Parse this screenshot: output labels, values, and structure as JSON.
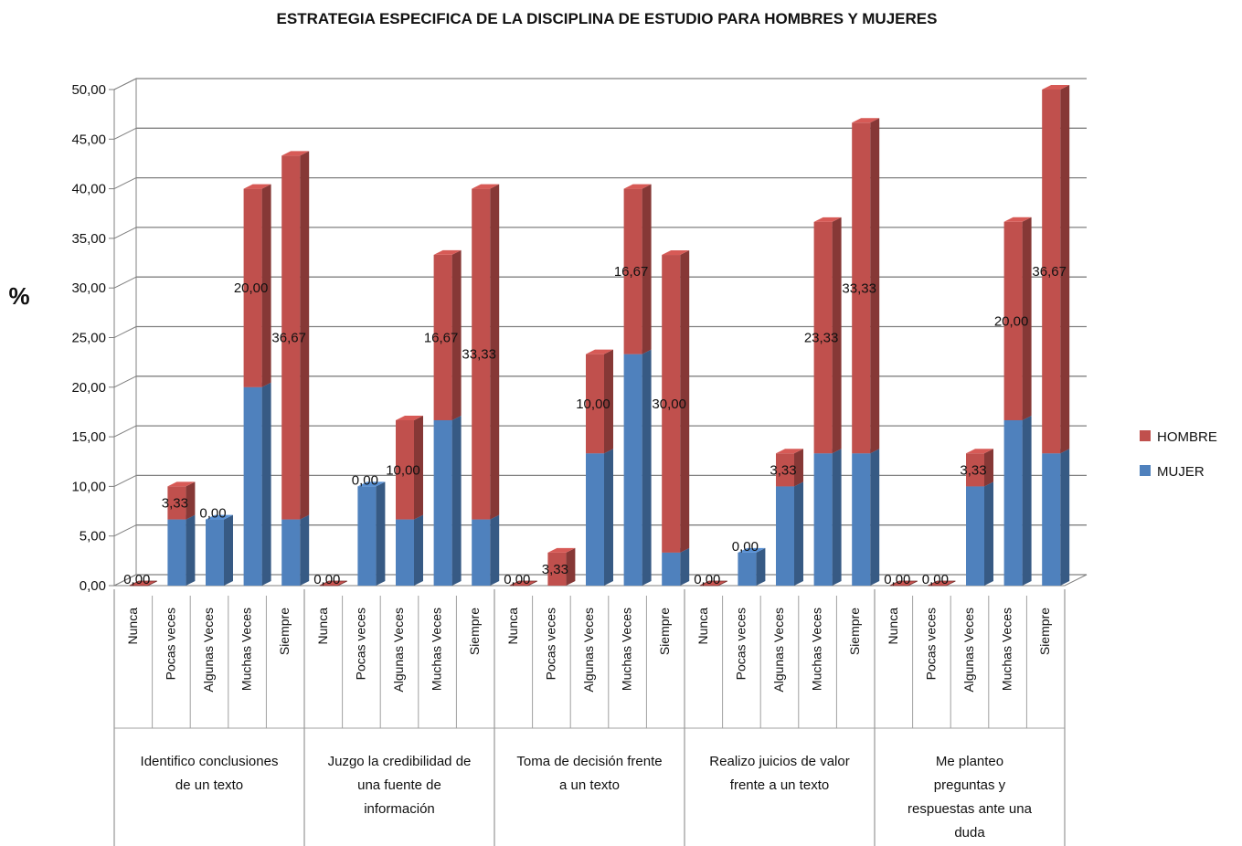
{
  "chart_data": {
    "type": "bar",
    "stacked": true,
    "three_d": true,
    "title": "ESTRATEGIA ESPECIFICA DE LA DISCIPLINA DE ESTUDIO PARA HOMBRES Y MUJERES",
    "ylabel": "%",
    "xlabel": "",
    "ylim": [
      0,
      50
    ],
    "yticks": [
      "0,00",
      "5,00",
      "10,00",
      "15,00",
      "20,00",
      "25,00",
      "30,00",
      "35,00",
      "40,00",
      "45,00",
      "50,00"
    ],
    "grid": true,
    "legend_position": "right",
    "categories": [
      "Nunca",
      "Pocas veces",
      "Algunas Veces",
      "Muchas Veces",
      "Siempre"
    ],
    "groups": [
      {
        "label_lines": [
          "Identifico conclusiones",
          "de un texto"
        ]
      },
      {
        "label_lines": [
          "Juzgo la credibilidad de",
          "una fuente de",
          "información"
        ]
      },
      {
        "label_lines": [
          "Toma de decisión frente",
          "a un texto"
        ]
      },
      {
        "label_lines": [
          "Realizo juicios de valor",
          "frente a un texto"
        ]
      },
      {
        "label_lines": [
          "Me planteo",
          "preguntas y",
          "respuestas ante una",
          "duda"
        ]
      }
    ],
    "series": [
      {
        "name": "MUJER",
        "color": "#4f81bd",
        "values": [
          [
            0,
            6.67,
            6.67,
            20,
            6.67
          ],
          [
            0,
            10,
            6.67,
            16.67,
            6.67
          ],
          [
            0,
            0,
            13.33,
            23.33,
            3.33
          ],
          [
            0,
            3.33,
            10,
            13.33,
            13.33
          ],
          [
            0,
            0,
            10,
            16.67,
            13.33
          ]
        ]
      },
      {
        "name": "HOMBRE",
        "color": "#c0504d",
        "values": [
          [
            0,
            3.33,
            0,
            20,
            36.67
          ],
          [
            0,
            0,
            10,
            16.67,
            33.33
          ],
          [
            0,
            3.33,
            10,
            16.67,
            30
          ],
          [
            0,
            0,
            3.33,
            23.33,
            33.33
          ],
          [
            0,
            0,
            3.33,
            20,
            36.67
          ]
        ]
      }
    ],
    "data_labels": [
      [
        "0,00",
        "3,33",
        "0,00",
        "20,00",
        "36,67"
      ],
      [
        "0,00",
        "0,00",
        "10,00",
        "16,67",
        "33,33"
      ],
      [
        "0,00",
        "3,33",
        "10,00",
        "16,67",
        "30,00"
      ],
      [
        "0,00",
        "0,00",
        "3,33",
        "23,33",
        "33,33"
      ],
      [
        "0,00",
        "0,00",
        "3,33",
        "20,00",
        "36,67"
      ]
    ],
    "legend": [
      "HOMBRE",
      "MUJER"
    ]
  }
}
